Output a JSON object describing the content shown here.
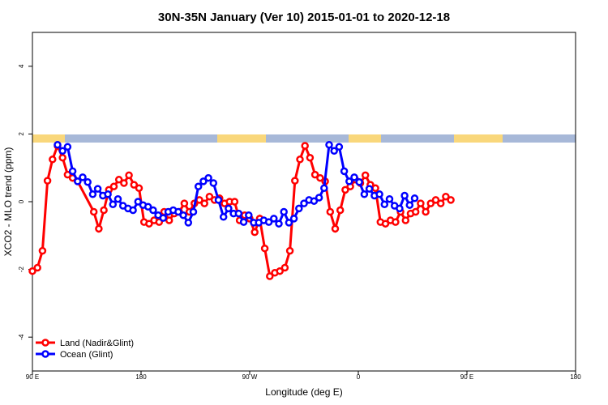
{
  "chart_data": {
    "type": "line",
    "title": "30N-35N January (Ver 10)   2015-01-01 to 2020-12-18",
    "xlabel": "Longitude (deg E)",
    "ylabel": "XCO2 - MLO trend (ppm)",
    "xlim": [
      -90,
      180
    ],
    "ylim": [
      -5,
      5
    ],
    "xticks": [
      -90,
      -45,
      0,
      45,
      90,
      135,
      180
    ],
    "xtick_labels": [
      "90 E",
      "180",
      "90 W",
      "0",
      "90 E",
      "180"
    ],
    "xtick_values": [
      -90,
      -36,
      18,
      72,
      126,
      180
    ],
    "yticks": [
      -4,
      -2,
      0,
      2,
      4
    ],
    "grid": false,
    "legend_position": "bottom-left",
    "series": [
      {
        "name": "Land (Nadir&Glint)",
        "color": "#ff0000",
        "x": [
          -90,
          -87.5,
          -85,
          -82.5,
          -80,
          -77.5,
          -75,
          -72.5,
          -70,
          -67.5,
          -59.5,
          -57,
          -54.5,
          -52,
          -49.5,
          -47,
          -44.5,
          -42,
          -39.5,
          -37,
          -34.5,
          -32,
          -29.5,
          -27,
          -24.5,
          -22,
          -19.5,
          -17,
          -14.5,
          -12,
          -9.5,
          -7,
          -4.5,
          -2,
          0.5,
          3,
          5.5,
          8,
          10.5,
          13,
          15.5,
          18,
          20.5,
          23,
          25.5,
          28,
          30.5,
          33,
          35.5,
          38,
          40.5,
          43,
          45.5,
          48,
          50.5,
          53,
          55.5,
          58,
          60.5,
          63,
          65.5,
          68,
          70.5,
          73,
          75.5,
          78,
          80.5,
          83,
          85.5,
          88,
          90.5,
          93,
          95.5,
          98,
          100.5,
          103,
          105.5,
          108,
          110.5,
          113,
          115.5,
          118
        ],
        "y": [
          -2.05,
          -1.95,
          -1.45,
          0.62,
          1.25,
          1.65,
          1.3,
          0.8,
          0.7,
          0.6,
          -0.3,
          -0.8,
          -0.25,
          0.35,
          0.45,
          0.65,
          0.55,
          0.78,
          0.5,
          0.4,
          -0.6,
          -0.65,
          -0.55,
          -0.6,
          -0.3,
          -0.55,
          -0.35,
          -0.3,
          -0.05,
          -0.3,
          -0.05,
          0.05,
          -0.05,
          0.15,
          0.05,
          0.1,
          -0.05,
          0.0,
          0.0,
          -0.55,
          -0.4,
          -0.5,
          -0.9,
          -0.5,
          -1.38,
          -2.2,
          -2.1,
          -2.05,
          -1.95,
          -1.45,
          0.62,
          1.25,
          1.65,
          1.3,
          0.8,
          0.7,
          0.6,
          -0.3,
          -0.8,
          -0.25,
          0.35,
          0.45,
          0.65,
          0.55,
          0.78,
          0.5,
          0.4,
          -0.6,
          -0.65,
          -0.55,
          -0.6,
          -0.3,
          -0.55,
          -0.35,
          -0.3,
          -0.05,
          -0.3,
          -0.05,
          0.05,
          -0.05,
          0.15,
          0.05
        ]
      },
      {
        "name": "Ocean (Glint)",
        "color": "#0000ff",
        "x": [
          -77.5,
          -75,
          -72.5,
          -70,
          -67.5,
          -65,
          -62.5,
          -60,
          -57.5,
          -55,
          -52.5,
          -50,
          -47.5,
          -45,
          -42.5,
          -40,
          -37.5,
          -35,
          -32.5,
          -30,
          -27.5,
          -25,
          -22.5,
          -20,
          -17.5,
          -15,
          -12.5,
          -10,
          -7.5,
          -5,
          -2.5,
          0,
          2.5,
          5,
          7.5,
          10,
          12.5,
          15,
          17.5,
          20,
          22.5,
          25,
          27.5,
          30,
          32.5,
          35,
          37.5,
          40,
          42.5,
          45,
          47.5,
          50,
          52.5,
          55,
          57.5,
          60,
          62.5,
          65,
          67.5,
          70,
          72.5,
          75,
          77.5,
          80,
          82.5,
          85,
          87.5,
          90,
          92.5,
          95,
          97.5,
          100
        ],
        "y": [
          1.68,
          1.5,
          1.62,
          0.9,
          0.6,
          0.72,
          0.58,
          0.22,
          0.38,
          0.18,
          0.22,
          -0.08,
          0.08,
          -0.12,
          -0.2,
          -0.25,
          0.0,
          -0.1,
          -0.15,
          -0.25,
          -0.4,
          -0.48,
          -0.3,
          -0.25,
          -0.3,
          -0.4,
          -0.62,
          -0.3,
          0.45,
          0.6,
          0.7,
          0.55,
          0.05,
          -0.45,
          -0.2,
          -0.35,
          -0.35,
          -0.6,
          -0.4,
          -0.62,
          -0.62,
          -0.55,
          -0.6,
          -0.5,
          -0.65,
          -0.3,
          -0.62,
          -0.5,
          -0.2,
          -0.05,
          0.05,
          0.02,
          0.12,
          0.4,
          1.68,
          1.5,
          1.62,
          0.9,
          0.6,
          0.72,
          0.58,
          0.22,
          0.38,
          0.18,
          0.22,
          -0.08,
          0.08,
          -0.12,
          -0.2,
          0.18,
          -0.1,
          0.1
        ]
      }
    ]
  }
}
